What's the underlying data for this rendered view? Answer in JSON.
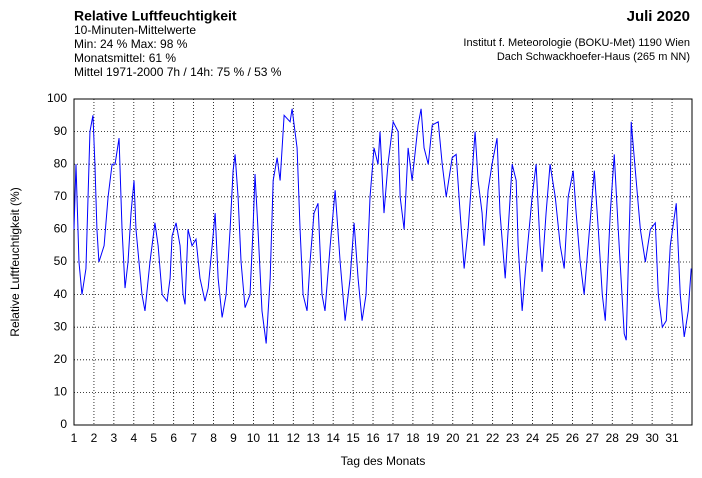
{
  "chart_data": {
    "type": "line",
    "title": "Relative Luftfeuchtigkeit",
    "subtitle": "Juli 2020",
    "annotations": [
      "10-Minuten-Mittelwerte",
      "Min:  24 %   Max:  98 %",
      "Monatsmittel:  61 %",
      "Mittel 1971-2000 7h / 14h:  75 % / 53 %"
    ],
    "source": [
      "Institut f. Meteorologie (BOKU-Met) 1190 Wien",
      "Dach Schwackhoefer-Haus (265 m NN)"
    ],
    "xlabel": "Tag des Monats",
    "ylabel": "Relative Luftfeuchtigkeit (%)",
    "color": "#0000ff",
    "grid": true,
    "xlim": [
      1,
      32
    ],
    "xticks": [
      1,
      2,
      3,
      4,
      5,
      6,
      7,
      8,
      9,
      10,
      11,
      12,
      13,
      14,
      15,
      16,
      17,
      18,
      19,
      20,
      21,
      22,
      23,
      24,
      25,
      26,
      27,
      28,
      29,
      30,
      31
    ],
    "ylim": [
      0,
      100
    ],
    "yticks": [
      0,
      10,
      20,
      30,
      40,
      50,
      60,
      70,
      80,
      90,
      100
    ],
    "x": [
      1.0,
      1.1,
      1.25,
      1.4,
      1.6,
      1.8,
      1.95,
      2.05,
      2.15,
      2.25,
      2.51,
      2.71,
      2.91,
      3.06,
      3.26,
      3.41,
      3.56,
      3.71,
      3.86,
      4.01,
      4.11,
      4.41,
      4.56,
      4.81,
      5.06,
      5.22,
      5.42,
      5.67,
      5.82,
      5.92,
      6.12,
      6.32,
      6.47,
      6.57,
      6.72,
      6.92,
      7.12,
      7.32,
      7.57,
      7.73,
      7.93,
      8.08,
      8.23,
      8.43,
      8.63,
      8.83,
      8.98,
      9.08,
      9.23,
      9.38,
      9.58,
      9.83,
      9.98,
      10.08,
      10.23,
      10.43,
      10.64,
      10.84,
      10.99,
      11.19,
      11.34,
      11.54,
      11.84,
      11.94,
      12.19,
      12.34,
      12.49,
      12.69,
      12.84,
      13.04,
      13.24,
      13.44,
      13.59,
      13.85,
      14.1,
      14.35,
      14.6,
      14.85,
      15.05,
      15.25,
      15.45,
      15.65,
      15.85,
      16.05,
      16.25,
      16.35,
      16.55,
      16.75,
      17.01,
      17.26,
      17.36,
      17.56,
      17.76,
      17.96,
      18.26,
      18.41,
      18.56,
      18.77,
      18.97,
      19.27,
      19.47,
      19.67,
      19.97,
      20.17,
      20.37,
      20.57,
      20.77,
      21.12,
      21.27,
      21.47,
      21.57,
      21.77,
      21.97,
      22.22,
      22.37,
      22.63,
      22.78,
      22.98,
      23.18,
      23.28,
      23.48,
      23.68,
      23.98,
      24.18,
      24.38,
      24.48,
      24.68,
      24.88,
      25.14,
      25.39,
      25.59,
      25.79,
      26.04,
      26.19,
      26.39,
      26.59,
      26.79,
      27.1,
      27.3,
      27.5,
      27.65,
      27.9,
      28.1,
      28.3,
      28.6,
      28.7,
      28.9,
      28.95,
      29.2,
      29.41,
      29.66,
      29.91,
      30.16,
      30.31,
      30.51,
      30.71,
      30.91,
      31.21,
      31.41,
      31.61,
      31.81,
      31.96
    ],
    "values": [
      60,
      80,
      50,
      40,
      48,
      90,
      95,
      80,
      60,
      50,
      55,
      70,
      80,
      80,
      88,
      60,
      42,
      50,
      65,
      75,
      60,
      40,
      35,
      50,
      62,
      55,
      40,
      38,
      45,
      58,
      62,
      55,
      40,
      37,
      60,
      55,
      57,
      45,
      38,
      42,
      55,
      65,
      45,
      33,
      40,
      60,
      78,
      83,
      70,
      50,
      36,
      40,
      60,
      77,
      60,
      35,
      25,
      45,
      75,
      82,
      75,
      95,
      93,
      97,
      85,
      60,
      40,
      35,
      50,
      65,
      68,
      40,
      35,
      55,
      72,
      50,
      32,
      45,
      62,
      45,
      32,
      40,
      70,
      85,
      80,
      90,
      65,
      80,
      93,
      90,
      70,
      60,
      85,
      75,
      92,
      97,
      85,
      80,
      92,
      93,
      80,
      70,
      82,
      83,
      65,
      48,
      60,
      90,
      75,
      65,
      55,
      72,
      80,
      88,
      65,
      45,
      60,
      80,
      75,
      55,
      35,
      50,
      70,
      80,
      55,
      47,
      65,
      80,
      70,
      55,
      48,
      70,
      78,
      65,
      50,
      40,
      55,
      78,
      60,
      40,
      32,
      65,
      83,
      60,
      28,
      26,
      70,
      93,
      75,
      60,
      50,
      60,
      62,
      40,
      30,
      32,
      55,
      68,
      40,
      27,
      35,
      48
    ]
  }
}
